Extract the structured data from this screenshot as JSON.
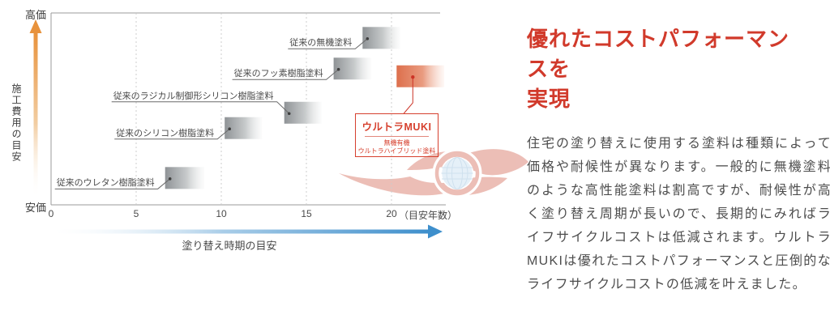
{
  "chart": {
    "y_axis": {
      "top_label": "高価",
      "bottom_label": "安価",
      "axis_title": "施工費用の目安"
    },
    "x_axis": {
      "ticks": [
        "0",
        "5",
        "10",
        "15",
        "20"
      ],
      "suffix": "（目安年数）",
      "arrow_label": "塗り替え時期の目安"
    },
    "highlight_box": {
      "title": "ウルトラMUKI",
      "sub1": "無機有機",
      "sub2": "ウルトラハイブリッド塗料"
    }
  },
  "chart_data": {
    "type": "scatter",
    "title": "",
    "xlabel": "塗り替え時期の目安（目安年数）",
    "ylabel": "施工費用の目安（安価→高価）",
    "x_ticks": [
      0,
      5,
      10,
      15,
      20
    ],
    "x_range": [
      0,
      23
    ],
    "grid": "dashed-vertical",
    "points": [
      {
        "name": "従来のウレタン樹脂塗料",
        "years": [
          6.7,
          9.0
        ],
        "cost": 14,
        "label_side": "left",
        "color": "gray"
      },
      {
        "name": "従来のシリコン樹脂塗料",
        "years": [
          10.2,
          12.4
        ],
        "cost": 40,
        "label_side": "left",
        "color": "gray"
      },
      {
        "name": "従来のラジカル制御形シリコン樹脂塗料",
        "years": [
          13.7,
          15.9
        ],
        "cost": 48,
        "label_side": "above-left",
        "color": "gray"
      },
      {
        "name": "従来のフッ素樹脂塗料",
        "years": [
          16.6,
          18.8
        ],
        "cost": 71,
        "label_side": "left",
        "color": "gray"
      },
      {
        "name": "従来の無機塗料",
        "years": [
          18.3,
          20.5
        ],
        "cost": 87,
        "label_side": "left",
        "color": "gray"
      },
      {
        "name": "ウルトラMUKI",
        "years": [
          20.3,
          23.1
        ],
        "cost": 67,
        "label_side": "box",
        "color": "orange"
      }
    ]
  },
  "panel": {
    "heading": "優れたコストパフォーマン\nスを\n実現",
    "body": "住宅の塗り替えに使用する塗料は種類によって価格や耐候性が異なります。一般的に無機塗料のような高性能塗料は割高ですが、耐候性が高く塗り替え周期が長いので、長期的にみればライフサイクルコストは低減されます。ウルトラMUKIは優れたコストパフォーマンスと圧倒的なライフサイクルコストの低減を叶えました。"
  },
  "colors": {
    "accent_red": "#d13a2b",
    "block_gray_start": "#909496",
    "block_orange_start": "#dd6f4c",
    "y_arrow_orange": "#e8923c",
    "x_arrow_blue": "#3e8fcc",
    "text_dark": "#4a4a4a"
  }
}
